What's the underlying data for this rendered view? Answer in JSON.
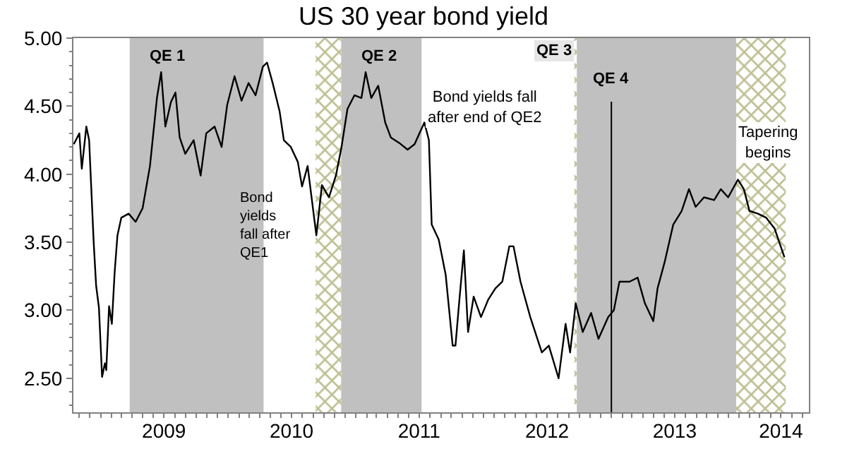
{
  "chart_data": {
    "type": "line",
    "title": "US 30 year bond yield",
    "x": [
      "2008-10-16",
      "2008-11-01",
      "2008-11-08",
      "2008-11-21",
      "2008-11-29",
      "2008-12-12",
      "2008-12-19",
      "2008-12-27",
      "2009-01-05",
      "2009-01-13",
      "2009-01-17",
      "2009-01-25",
      "2009-02-02",
      "2009-02-10",
      "2009-02-18",
      "2009-03-01",
      "2009-03-22",
      "2009-04-11",
      "2009-05-01",
      "2009-05-22",
      "2009-06-11",
      "2009-06-23",
      "2009-07-05",
      "2009-07-21",
      "2009-08-03",
      "2009-08-15",
      "2009-08-31",
      "2009-09-24",
      "2009-10-14",
      "2009-10-30",
      "2009-11-23",
      "2009-12-13",
      "2009-12-29",
      "2010-01-19",
      "2010-02-08",
      "2010-02-28",
      "2010-03-20",
      "2010-04-10",
      "2010-04-22",
      "2010-05-08",
      "2010-05-28",
      "2010-06-09",
      "2010-06-29",
      "2010-07-19",
      "2010-07-31",
      "2010-08-16",
      "2010-09-10",
      "2010-09-26",
      "2010-10-16",
      "2010-11-05",
      "2010-11-21",
      "2010-12-08",
      "2010-12-28",
      "2011-01-17",
      "2011-01-29",
      "2011-02-14",
      "2011-03-06",
      "2011-03-26",
      "2011-04-11",
      "2011-05-05",
      "2011-05-29",
      "2011-06-18",
      "2011-07-16",
      "2011-07-29",
      "2011-08-06",
      "2011-08-26",
      "2011-09-15",
      "2011-10-05",
      "2011-10-13",
      "2011-10-25",
      "2011-11-06",
      "2011-11-18",
      "2011-12-04",
      "2011-12-25",
      "2012-01-15",
      "2012-02-04",
      "2012-02-24",
      "2012-03-15",
      "2012-03-27",
      "2012-04-16",
      "2012-05-14",
      "2012-06-16",
      "2012-07-06",
      "2012-08-03",
      "2012-08-23",
      "2012-09-05",
      "2012-09-21",
      "2012-10-11",
      "2012-11-04",
      "2012-11-25",
      "2012-12-23",
      "2013-01-08",
      "2013-01-24",
      "2013-02-22",
      "2013-03-17",
      "2013-04-07",
      "2013-05-01",
      "2013-05-13",
      "2013-06-03",
      "2013-06-27",
      "2013-07-21",
      "2013-08-11",
      "2013-08-30",
      "2013-09-23",
      "2013-10-22",
      "2013-11-10",
      "2013-12-01",
      "2013-12-29",
      "2014-01-15",
      "2014-01-31",
      "2014-02-24",
      "2014-03-20",
      "2014-04-13",
      "2014-05-11"
    ],
    "series": [
      {
        "color": "#000000",
        "values": [
          4.22,
          4.3,
          4.04,
          4.35,
          4.25,
          3.5,
          3.18,
          3.02,
          2.51,
          2.61,
          2.56,
          3.03,
          2.9,
          3.28,
          3.55,
          3.68,
          3.71,
          3.65,
          3.75,
          4.06,
          4.56,
          4.75,
          4.35,
          4.53,
          4.6,
          4.27,
          4.15,
          4.25,
          3.99,
          4.3,
          4.35,
          4.2,
          4.51,
          4.72,
          4.54,
          4.67,
          4.58,
          4.79,
          4.82,
          4.67,
          4.46,
          4.25,
          4.2,
          4.09,
          3.91,
          4.06,
          3.55,
          3.92,
          3.83,
          3.99,
          4.2,
          4.48,
          4.58,
          4.56,
          4.75,
          4.56,
          4.65,
          4.38,
          4.27,
          4.23,
          4.18,
          4.22,
          4.38,
          4.25,
          3.63,
          3.52,
          3.26,
          2.74,
          2.74,
          3.1,
          3.44,
          2.84,
          3.1,
          2.95,
          3.08,
          3.16,
          3.21,
          3.47,
          3.47,
          3.21,
          2.95,
          2.69,
          2.74,
          2.5,
          2.9,
          2.69,
          3.05,
          2.84,
          2.98,
          2.79,
          2.95,
          3.0,
          3.21,
          3.21,
          3.24,
          3.05,
          2.92,
          3.16,
          3.36,
          3.63,
          3.73,
          3.89,
          3.76,
          3.83,
          3.81,
          3.89,
          3.83,
          3.96,
          3.89,
          3.73,
          3.71,
          3.68,
          3.6,
          3.39
        ]
      }
    ],
    "xlim": [
      "2008-10-15",
      "2014-07-20"
    ],
    "xticks": [
      {
        "value": "2009-01-01",
        "label": null
      },
      {
        "value": "2009-07-01",
        "label": "2009"
      },
      {
        "value": "2010-01-01",
        "label": null
      },
      {
        "value": "2010-07-01",
        "label": "2010"
      },
      {
        "value": "2011-01-01",
        "label": null
      },
      {
        "value": "2011-07-01",
        "label": "2011"
      },
      {
        "value": "2012-01-01",
        "label": null
      },
      {
        "value": "2012-07-01",
        "label": "2012"
      },
      {
        "value": "2013-01-01",
        "label": null
      },
      {
        "value": "2013-07-01",
        "label": "2013"
      },
      {
        "value": "2014-01-01",
        "label": null
      },
      {
        "value": "2014-05-01",
        "label": "2014"
      }
    ],
    "ylim": [
      2.25,
      5.0
    ],
    "yticks": [
      {
        "value": 2.5,
        "label": "2.50"
      },
      {
        "value": 3.0,
        "label": "3.00"
      },
      {
        "value": 3.5,
        "label": "3.50"
      },
      {
        "value": 4.0,
        "label": "4.00"
      },
      {
        "value": 4.5,
        "label": "4.50"
      },
      {
        "value": 5.0,
        "label": "5.00"
      }
    ],
    "bands": [
      {
        "axis": "x",
        "from": "2009-03-25",
        "to": "2010-04-12",
        "label": "QE 1",
        "color": "#c0c0c0"
      },
      {
        "axis": "x",
        "from": "2010-09-08",
        "to": "2010-11-20",
        "label": null,
        "color": "#7f7f2a"
      },
      {
        "axis": "x",
        "from": "2010-11-20",
        "to": "2011-07-08",
        "label": "QE 2",
        "color": "#c0c0c0"
      },
      {
        "axis": "x",
        "from": "2012-09-17",
        "to": "2012-09-24",
        "label": "QE 3",
        "color": "#7f7f2a"
      },
      {
        "axis": "x",
        "from": "2012-09-24",
        "to": "2013-12-24",
        "label": null,
        "color": "#c0c0c0"
      },
      {
        "axis": "x",
        "from": "2013-12-24",
        "to": "2014-05-15",
        "label": "Tapering begins",
        "color": "#7f7f2a"
      }
    ],
    "ref_lines": [
      {
        "axis": "x",
        "value": "2013-01-01",
        "label": "QE 4",
        "color": "#000000"
      }
    ],
    "annotations": [
      "Bond yields fall after QE1",
      "Bond yields fall after end of QE2"
    ],
    "marker": "none",
    "line_style": "solid"
  }
}
